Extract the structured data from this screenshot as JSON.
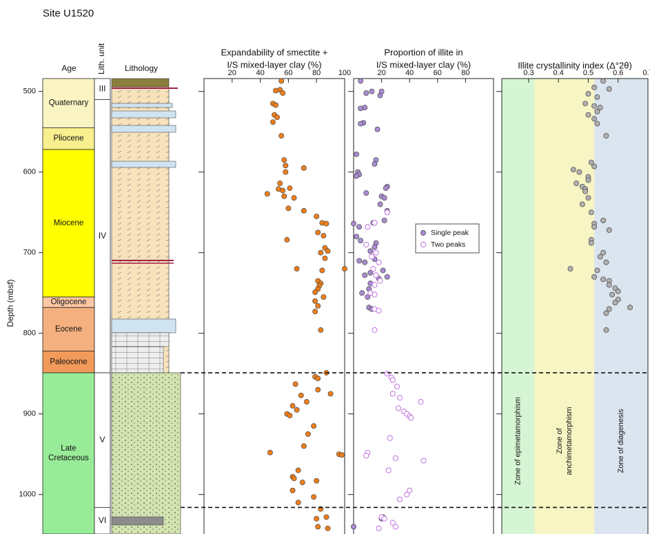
{
  "chart_data": [
    {
      "type": "strat-column",
      "title": "Site U1520",
      "ylabel": "Depth (mbsf)",
      "ylim": [
        484,
        1049
      ],
      "yticks": [
        500,
        600,
        700,
        800,
        900,
        1000
      ],
      "unit_boundaries": [
        849,
        1016
      ],
      "age": {
        "title": "Age",
        "units": [
          {
            "name": [
              "Quaternary"
            ],
            "top": 484,
            "base": 545,
            "color": "#f9f4c2"
          },
          {
            "name": [
              "Pliocene"
            ],
            "top": 545,
            "base": 572,
            "color": "#f8ef8e"
          },
          {
            "name": [
              "Miocene"
            ],
            "top": 572,
            "base": 755,
            "color": "#ffff00"
          },
          {
            "name": [
              "Oligocene"
            ],
            "top": 755,
            "base": 768,
            "color": "#fcc8a4"
          },
          {
            "name": [
              "Eocene"
            ],
            "top": 768,
            "base": 822,
            "color": "#f4b07e"
          },
          {
            "name": [
              "Paleocene"
            ],
            "top": 822,
            "base": 849,
            "color": "#f29a5a"
          },
          {
            "name": [
              "Late",
              "Cretaceous"
            ],
            "top": 849,
            "base": 1049,
            "color": "#98ec98"
          }
        ]
      },
      "lith_unit": {
        "title": "Lith. unit",
        "units": [
          {
            "name": "III",
            "top": 484,
            "base": 510
          },
          {
            "name": "IV",
            "top": 510,
            "base": 849
          },
          {
            "name": "V",
            "top": 849,
            "base": 1016
          },
          {
            "name": "VI",
            "top": 1016,
            "base": 1049
          }
        ]
      },
      "lithology": {
        "title": "Lithology"
      }
    },
    {
      "type": "scatter",
      "title": [
        "Expandability of smectite +",
        "I/S mixed-layer clay (%)"
      ],
      "xlim": [
        0,
        100
      ],
      "xticks": [
        20,
        40,
        60,
        80,
        100
      ],
      "series": [
        {
          "color": "#f07f1b",
          "y": [
            487,
            498,
            499,
            502,
            515,
            517,
            529,
            532,
            538,
            555,
            585,
            592,
            595,
            600,
            614,
            620,
            621,
            623,
            627,
            630,
            632,
            645,
            648,
            655,
            663,
            664,
            675,
            679,
            684,
            694,
            698,
            700,
            707,
            720,
            720,
            722,
            735,
            738,
            741,
            745,
            749,
            755,
            760,
            766,
            773,
            796,
            849,
            854,
            856,
            863,
            870,
            875,
            877,
            885,
            890,
            895,
            900,
            902,
            915,
            925,
            940,
            948,
            950,
            951,
            970,
            978,
            980,
            983,
            985,
            995,
            1003,
            1010,
            1018,
            1028,
            1030,
            1040,
            1042
          ],
          "x": [
            55,
            54,
            51,
            56,
            49,
            51,
            50,
            52,
            49,
            55,
            57,
            58,
            71,
            58,
            54,
            61,
            53,
            56,
            45,
            57,
            64,
            60,
            71,
            80,
            84,
            87,
            81,
            85,
            59,
            86,
            88,
            83,
            86,
            66,
            100,
            84,
            81,
            83,
            82,
            81,
            79,
            85,
            79,
            81,
            79,
            83,
            87,
            79,
            81,
            65,
            81,
            90,
            69,
            73,
            63,
            66,
            59,
            61,
            78,
            74,
            71,
            47,
            96,
            98,
            67,
            63,
            64,
            80,
            70,
            63,
            78,
            67,
            83,
            87,
            80,
            81,
            88
          ]
        }
      ]
    },
    {
      "type": "scatter",
      "title": [
        "Proportion of illite in",
        "I/S mixed-layer clay (%)"
      ],
      "xlim": [
        0,
        100
      ],
      "xticks": [
        20,
        40,
        60,
        80
      ],
      "legend": "right",
      "series": [
        {
          "name": "Single peak",
          "color": "#a98cd0",
          "filled": true,
          "y": [
            487,
            502,
            500,
            505,
            500,
            520,
            521,
            539,
            540,
            547,
            578,
            585,
            590,
            600,
            603,
            605,
            618,
            620,
            626,
            630,
            632,
            640,
            648,
            660,
            663,
            664,
            668,
            680,
            685,
            688,
            693,
            698,
            708,
            710,
            712,
            722,
            725,
            728,
            730,
            732,
            738,
            745,
            750,
            755,
            768,
            770,
            1028,
            1030,
            1040
          ],
          "x": [
            5,
            9,
            13,
            19,
            20,
            8,
            5,
            7,
            5,
            17,
            2,
            16,
            15,
            3,
            4,
            2,
            24,
            23,
            9,
            20,
            22,
            19,
            24,
            22,
            14,
            0,
            4,
            2,
            5,
            16,
            15,
            12,
            15,
            4,
            8,
            21,
            12,
            8,
            24,
            18,
            12,
            11,
            6,
            10,
            11,
            13,
            21,
            20,
            0
          ]
        },
        {
          "name": "Two peaks",
          "color": "#c070e0",
          "filled": false,
          "y": [
            650,
            663,
            668,
            690,
            700,
            705,
            712,
            720,
            728,
            735,
            740,
            750,
            752,
            770,
            772,
            796,
            850,
            855,
            858,
            866,
            875,
            880,
            885,
            893,
            897,
            900,
            903,
            905,
            930,
            948,
            952,
            955,
            958,
            970,
            995,
            1000,
            1006,
            1028,
            1030,
            1035,
            1042,
            1040
          ],
          "x": [
            24,
            15,
            10,
            9,
            16,
            13,
            18,
            14,
            16,
            19,
            15,
            12,
            15,
            15,
            18,
            15,
            24,
            27,
            28,
            31,
            28,
            33,
            48,
            32,
            36,
            38,
            40,
            41,
            26,
            10,
            9,
            30,
            50,
            25,
            40,
            38,
            33,
            20,
            22,
            28,
            18,
            30
          ]
        }
      ]
    },
    {
      "type": "scatter",
      "title": [
        "Illite crystallinity index (Δ°2θ)"
      ],
      "xlim": [
        0.21,
        0.7
      ],
      "xticks": [
        0.3,
        0.4,
        0.5,
        0.6,
        0.7
      ],
      "zone_boundaries": [
        0.32,
        0.52
      ],
      "zones": [
        {
          "label": [
            "Zone of epimetamorphism"
          ],
          "color": "#d6f5d4"
        },
        {
          "label": [
            "Zone of",
            "anchimetamorphism"
          ],
          "color": "#f8f5c4"
        },
        {
          "label": [
            "Zone of diagenesis"
          ],
          "color": "#dbe5ef"
        }
      ],
      "series": [
        {
          "color": "#b0b0b0",
          "y": [
            487,
            495,
            497,
            503,
            507,
            515,
            518,
            520,
            525,
            529,
            534,
            540,
            555,
            588,
            593,
            597,
            600,
            606,
            610,
            614,
            618,
            621,
            624,
            632,
            640,
            650,
            660,
            664,
            668,
            672,
            684,
            688,
            700,
            705,
            712,
            720,
            722,
            730,
            733,
            735,
            740,
            744,
            748,
            752,
            758,
            762,
            768,
            770,
            775,
            796
          ],
          "x": [
            0.55,
            0.52,
            0.57,
            0.5,
            0.53,
            0.49,
            0.52,
            0.54,
            0.53,
            0.5,
            0.52,
            0.53,
            0.56,
            0.51,
            0.52,
            0.45,
            0.47,
            0.5,
            0.5,
            0.46,
            0.48,
            0.49,
            0.49,
            0.5,
            0.48,
            0.51,
            0.55,
            0.52,
            0.52,
            0.57,
            0.51,
            0.51,
            0.55,
            0.54,
            0.56,
            0.44,
            0.53,
            0.52,
            0.55,
            0.57,
            0.57,
            0.59,
            0.6,
            0.58,
            0.6,
            0.59,
            0.64,
            0.57,
            0.56,
            0.56
          ]
        }
      ]
    }
  ]
}
